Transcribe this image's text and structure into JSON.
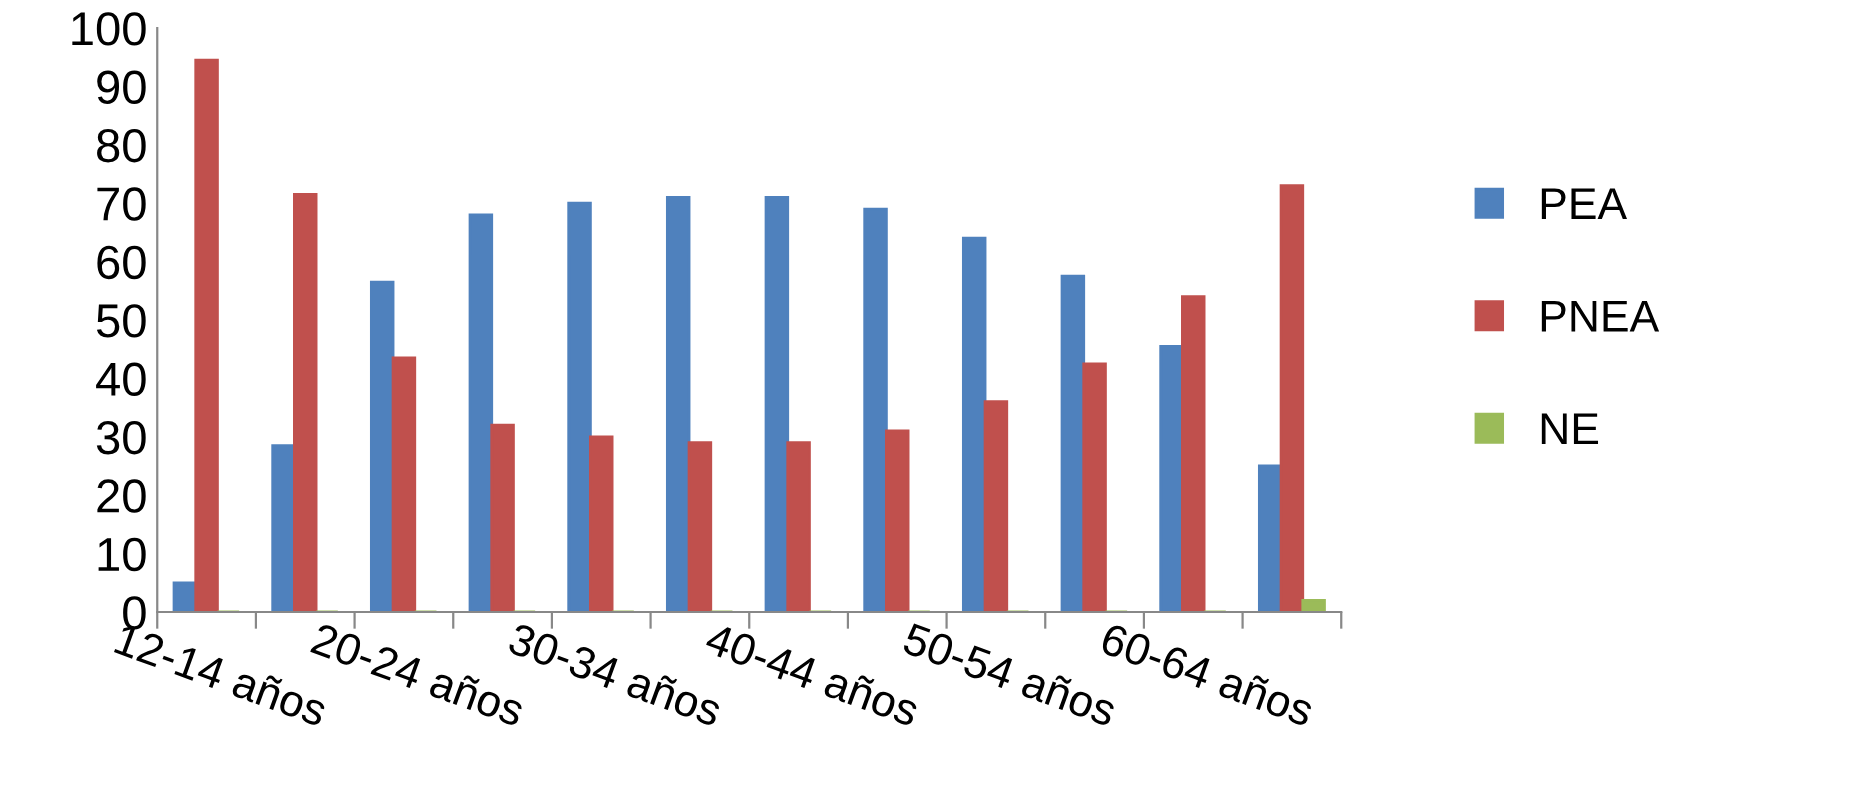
{
  "chart_data": {
    "type": "bar",
    "categories": [
      "12-14 años",
      null,
      "20-24 años",
      null,
      "30-34 años",
      null,
      "40-44 años",
      null,
      "50-54 años",
      null,
      "60-64 años",
      null
    ],
    "series": [
      {
        "name": "PEA",
        "color": "#4f81bd",
        "values": [
          5,
          28.5,
          56.5,
          68,
          70,
          71,
          71,
          69,
          64,
          57.5,
          45.5,
          25
        ]
      },
      {
        "name": "PNEA",
        "color": "#c0504d",
        "values": [
          94.5,
          71.5,
          43.5,
          32,
          30,
          29,
          29,
          31,
          36,
          42.5,
          54,
          73
        ]
      },
      {
        "name": "NE",
        "color": "#9bbb59",
        "values": [
          0,
          0,
          0,
          0,
          0,
          0,
          0,
          0,
          0,
          0,
          0,
          2
        ]
      }
    ],
    "ylim": [
      0,
      100
    ],
    "yticks": [
      0,
      10,
      20,
      30,
      40,
      50,
      60,
      70,
      80,
      90,
      100
    ],
    "grid": false,
    "legend": "right"
  }
}
